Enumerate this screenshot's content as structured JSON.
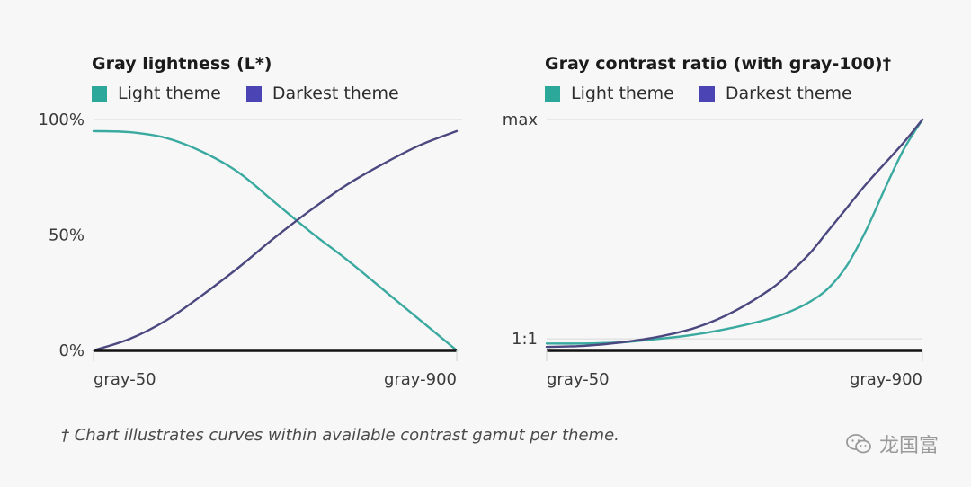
{
  "colors": {
    "light_theme": "#2ca89a",
    "darkest_theme": "#4a44b5",
    "light_line": "#3aa99f",
    "darkest_line": "#4b4880",
    "grid": "#d8d8d8",
    "baseline": "#111111"
  },
  "chart_data": [
    {
      "type": "line",
      "title": "Gray lightness (L*)",
      "legend": [
        "Light theme",
        "Darkest theme"
      ],
      "legend_placement": "top-left",
      "x_ticks": [
        "gray-50",
        "gray-900"
      ],
      "y_ticks": [
        "100%",
        "50%",
        "0%"
      ],
      "y_tick_values": [
        100,
        50,
        0
      ],
      "ylim": [
        0,
        100
      ],
      "xlim": [
        0,
        1
      ],
      "grid": true,
      "series": [
        {
          "name": "Light theme",
          "color": "light_line",
          "x": [
            0,
            0.1,
            0.2,
            0.3,
            0.4,
            0.5,
            0.6,
            0.7,
            0.8,
            0.9,
            1
          ],
          "y": [
            95,
            94.5,
            92,
            86,
            77,
            64,
            51,
            39,
            26,
            13,
            0
          ]
        },
        {
          "name": "Darkest theme",
          "color": "darkest_line",
          "x": [
            0,
            0.1,
            0.2,
            0.3,
            0.4,
            0.5,
            0.6,
            0.7,
            0.8,
            0.9,
            1
          ],
          "y": [
            0,
            5,
            13,
            24,
            36,
            49,
            61,
            72,
            81,
            89,
            95
          ]
        }
      ]
    },
    {
      "type": "line",
      "title": "Gray contrast ratio (with gray-100)†",
      "legend": [
        "Light theme",
        "Darkest theme"
      ],
      "legend_placement": "top-left",
      "x_ticks": [
        "gray-50",
        "gray-900"
      ],
      "y_ticks": [
        "max",
        "1:1"
      ],
      "y_tick_values": [
        1,
        0.05
      ],
      "ylim": [
        0,
        1
      ],
      "xlim": [
        0,
        1
      ],
      "grid": true,
      "series": [
        {
          "name": "Light theme",
          "color": "light_line",
          "x": [
            0,
            0.1,
            0.2,
            0.3,
            0.4,
            0.5,
            0.6,
            0.65,
            0.7,
            0.75,
            0.8,
            0.85,
            0.9,
            0.95,
            1
          ],
          "y": [
            0.03,
            0.03,
            0.035,
            0.05,
            0.07,
            0.1,
            0.14,
            0.17,
            0.21,
            0.27,
            0.37,
            0.52,
            0.7,
            0.87,
            1.0
          ]
        },
        {
          "name": "Darkest theme",
          "color": "darkest_line",
          "x": [
            0,
            0.1,
            0.2,
            0.3,
            0.4,
            0.5,
            0.6,
            0.65,
            0.7,
            0.75,
            0.8,
            0.85,
            0.9,
            0.95,
            1
          ],
          "y": [
            0.015,
            0.02,
            0.035,
            0.06,
            0.1,
            0.17,
            0.27,
            0.34,
            0.42,
            0.52,
            0.62,
            0.72,
            0.81,
            0.9,
            1.0
          ]
        }
      ]
    }
  ],
  "footnote": "† Chart illustrates curves within available contrast gamut per theme.",
  "watermark": "龙国富"
}
